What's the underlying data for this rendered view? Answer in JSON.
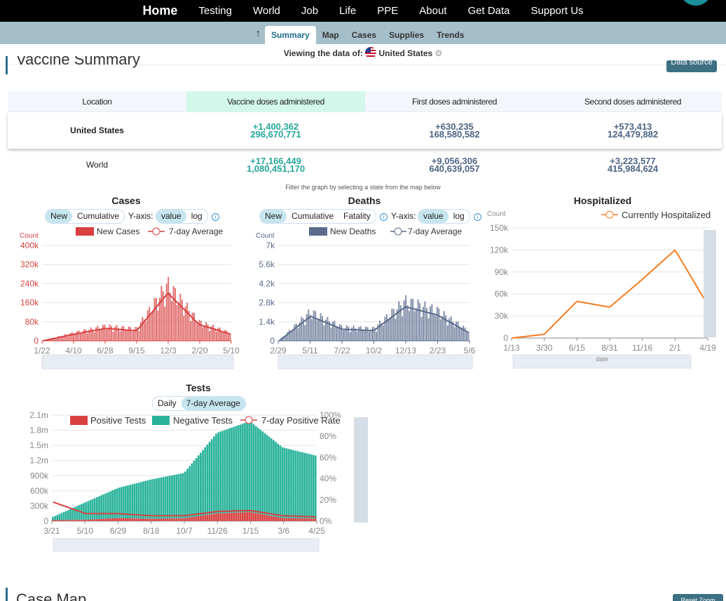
{
  "nav": {
    "home": "Home",
    "items": [
      "Testing",
      "World",
      "Job",
      "Life",
      "PPE",
      "About",
      "Get Data",
      "Support Us"
    ]
  },
  "subnav": {
    "up": "↑",
    "tabs": [
      "Summary",
      "Map",
      "Cases",
      "Supplies",
      "Trends"
    ],
    "active": "Summary"
  },
  "viewing": {
    "label": "Viewing the data of:",
    "location": "United States",
    "gear": "⚙"
  },
  "section": {
    "title": "Vaccine Summary",
    "data_source": "Data source",
    "next_title": "Case Map",
    "next_button": "Reset Zoom"
  },
  "vaccine_table": {
    "headers": [
      "Location",
      "Vaccine doses administered",
      "First doses administered",
      "Second doses administered"
    ],
    "rows": [
      {
        "location": "United States",
        "total_new": "+1,400,362",
        "total": "296,670,771",
        "first_new": "+630,235",
        "first": "168,580,582",
        "second_new": "+573,413",
        "second": "124,479,882"
      },
      {
        "location": "World",
        "total_new": "+17,166,449",
        "total": "1,080,451,170",
        "first_new": "+9,056,306",
        "first": "640,639,057",
        "second_new": "+3,223,577",
        "second": "415,984,624"
      }
    ]
  },
  "filter_note": "Filter the graph by selecting a state from the map below",
  "charts": {
    "cases": {
      "title": "Cases",
      "toggle": [
        "New",
        "Cumulative"
      ],
      "yaxis_label": "Y-axis:",
      "scale": [
        "value",
        "log"
      ],
      "info": "i",
      "legend": [
        "New Cases",
        "7-day Average"
      ],
      "count_label": "Count",
      "y_ticks": [
        "0",
        "80k",
        "160k",
        "240k",
        "320k",
        "400k"
      ],
      "x_ticks": [
        "1/22",
        "4/10",
        "6/28",
        "9/15",
        "12/3",
        "2/20",
        "5/10"
      ],
      "color": "#d94040"
    },
    "deaths": {
      "title": "Deaths",
      "toggle": [
        "New",
        "Cumulative",
        "Fatality"
      ],
      "yaxis_label": "Y-axis:",
      "scale": [
        "value",
        "log"
      ],
      "info": "i",
      "legend": [
        "New Deaths",
        "7-day Average"
      ],
      "count_label": "Count",
      "y_ticks": [
        "0",
        "1.4k",
        "2.8k",
        "4.2k",
        "5.6k",
        "7k"
      ],
      "x_ticks": [
        "2/29",
        "5/11",
        "7/22",
        "10/2",
        "12/13",
        "2/23",
        "5/6"
      ],
      "color": "#5a6b8c"
    },
    "hospitalized": {
      "title": "Hospitalized",
      "legend": [
        "Currently Hospitalized"
      ],
      "count_label": "Count",
      "x_axis_name": "date",
      "y_ticks": [
        "0",
        "30k",
        "60k",
        "90k",
        "120k",
        "150k"
      ],
      "x_ticks": [
        "1/13",
        "3/30",
        "6/15",
        "8/31",
        "11/16",
        "2/1",
        "4/19"
      ],
      "color": "#f57c20"
    },
    "tests": {
      "title": "Tests",
      "toggle": [
        "Daily",
        "7-day Average"
      ],
      "legend": [
        "Positive Tests",
        "Negative Tests",
        "7-day Positive Rate"
      ],
      "y_ticks": [
        "0",
        "300k",
        "600k",
        "900k",
        "1.2m",
        "1.5m",
        "1.8m",
        "2.1m"
      ],
      "y2_ticks": [
        "0%",
        "20%",
        "40%",
        "60%",
        "80%",
        "100%"
      ],
      "x_ticks": [
        "3/21",
        "5/10",
        "6/29",
        "8/18",
        "10/7",
        "11/26",
        "1/15",
        "3/6",
        "4/25"
      ],
      "pos_color": "#d94040",
      "neg_color": "#2ab39b"
    }
  },
  "chart_data": [
    {
      "type": "bar",
      "title": "Cases",
      "ylabel": "Count",
      "ylim": [
        0,
        400000
      ],
      "x": [
        "1/22",
        "4/10",
        "6/28",
        "9/15",
        "12/3",
        "2/20",
        "5/10"
      ],
      "series": [
        {
          "name": "New Cases",
          "values": [
            0,
            30000,
            55000,
            45000,
            210000,
            70000,
            30000
          ]
        },
        {
          "name": "7-day Average",
          "values": [
            0,
            28000,
            52000,
            42000,
            200000,
            68000,
            28000
          ]
        }
      ]
    },
    {
      "type": "bar",
      "title": "Deaths",
      "ylabel": "Count",
      "ylim": [
        0,
        7000
      ],
      "x": [
        "2/29",
        "5/11",
        "7/22",
        "10/2",
        "12/13",
        "2/23",
        "5/6"
      ],
      "series": [
        {
          "name": "New Deaths",
          "values": [
            0,
            1900,
            900,
            800,
            2600,
            2000,
            650
          ]
        },
        {
          "name": "7-day Average",
          "values": [
            0,
            1800,
            850,
            750,
            2500,
            1900,
            600
          ]
        }
      ]
    },
    {
      "type": "line",
      "title": "Hospitalized",
      "ylabel": "Count",
      "xlabel": "date",
      "ylim": [
        0,
        150000
      ],
      "x": [
        "1/13",
        "3/30",
        "6/15",
        "8/31",
        "11/16",
        "2/1",
        "4/19"
      ],
      "series": [
        {
          "name": "Currently Hospitalized",
          "values": [
            0,
            5000,
            50000,
            42000,
            80000,
            120000,
            45000
          ]
        }
      ]
    },
    {
      "type": "bar",
      "title": "Tests",
      "ylim": [
        0,
        2100000
      ],
      "x": [
        "3/21",
        "5/10",
        "6/29",
        "8/18",
        "10/7",
        "11/26",
        "1/15",
        "3/6",
        "4/25"
      ],
      "series": [
        {
          "name": "Positive Tests",
          "values": [
            20000,
            25000,
            60000,
            45000,
            55000,
            150000,
            180000,
            60000,
            50000
          ]
        },
        {
          "name": "Negative Tests",
          "values": [
            60000,
            350000,
            600000,
            780000,
            900000,
            1600000,
            1800000,
            1400000,
            1250000
          ]
        },
        {
          "name": "7-day Positive Rate",
          "values": [
            18,
            7,
            7,
            5,
            5,
            9,
            10,
            5,
            4
          ]
        }
      ]
    }
  ]
}
